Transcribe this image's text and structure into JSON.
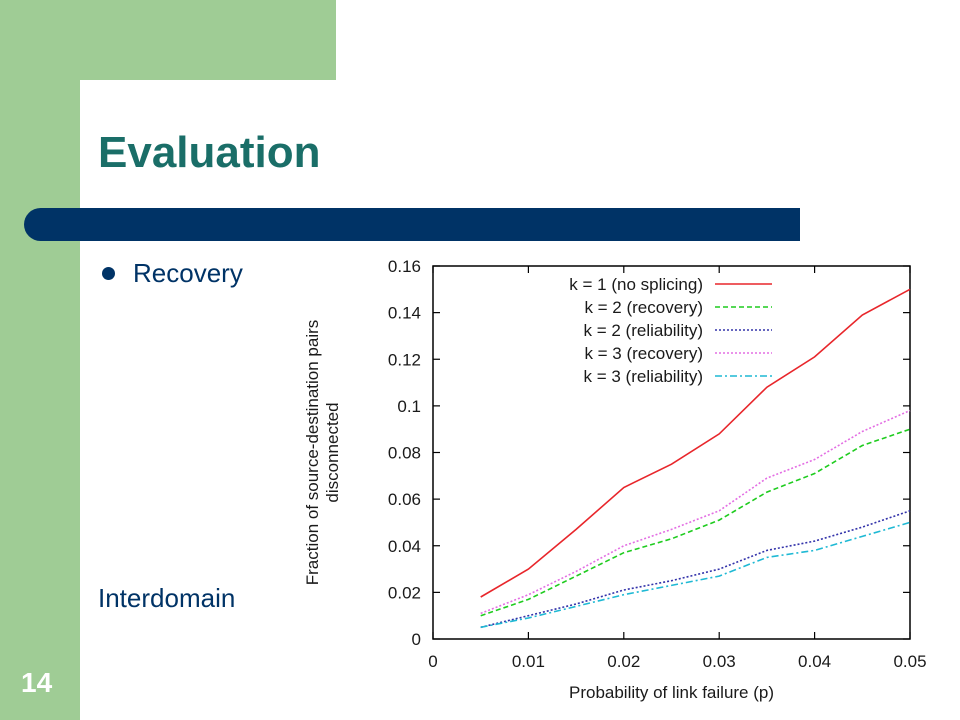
{
  "slide": {
    "title": "Evaluation",
    "bullet": "Recovery",
    "subtext": "Interdomain",
    "page_number": "14",
    "colors": {
      "title": "#1a6e68",
      "bar": "#003366",
      "band": "#9fcc95"
    }
  },
  "chart_data": {
    "type": "line",
    "title": "",
    "xlabel": "Probability of link failure (p)",
    "ylabel": "Fraction of source-destination pairs disconnected",
    "xlim": [
      0,
      0.05
    ],
    "ylim": [
      0,
      0.16
    ],
    "x_ticks": [
      "0",
      "0.01",
      "0.02",
      "0.03",
      "0.04",
      "0.05"
    ],
    "y_ticks": [
      "0",
      "0.02",
      "0.04",
      "0.06",
      "0.08",
      "0.1",
      "0.12",
      "0.14",
      "0.16"
    ],
    "legend_position": "top-right",
    "grid": false,
    "x": [
      0.005,
      0.01,
      0.015,
      0.02,
      0.025,
      0.03,
      0.035,
      0.04,
      0.045,
      0.05
    ],
    "series": [
      {
        "name": "k = 1 (no splicing)",
        "color": "#e8262b",
        "dash": "solid",
        "values": [
          0.018,
          0.03,
          0.047,
          0.065,
          0.075,
          0.088,
          0.108,
          0.121,
          0.139,
          0.15
        ]
      },
      {
        "name": "k = 2 (recovery)",
        "color": "#1fcc1f",
        "dash": "dashed",
        "values": [
          0.01,
          0.017,
          0.027,
          0.037,
          0.043,
          0.051,
          0.063,
          0.071,
          0.083,
          0.09
        ]
      },
      {
        "name": "k = 2 (reliability)",
        "color": "#3333aa",
        "dash": "dotted",
        "values": [
          0.005,
          0.01,
          0.015,
          0.021,
          0.025,
          0.03,
          0.038,
          0.042,
          0.048,
          0.055
        ]
      },
      {
        "name": "k = 3 (recovery)",
        "color": "#e36ee3",
        "dash": "dotted",
        "values": [
          0.011,
          0.019,
          0.029,
          0.04,
          0.047,
          0.055,
          0.069,
          0.077,
          0.089,
          0.098
        ]
      },
      {
        "name": "k = 3 (reliability)",
        "color": "#1fb9d4",
        "dash": "dashdot",
        "values": [
          0.005,
          0.009,
          0.014,
          0.019,
          0.023,
          0.027,
          0.035,
          0.038,
          0.044,
          0.05
        ]
      }
    ]
  }
}
